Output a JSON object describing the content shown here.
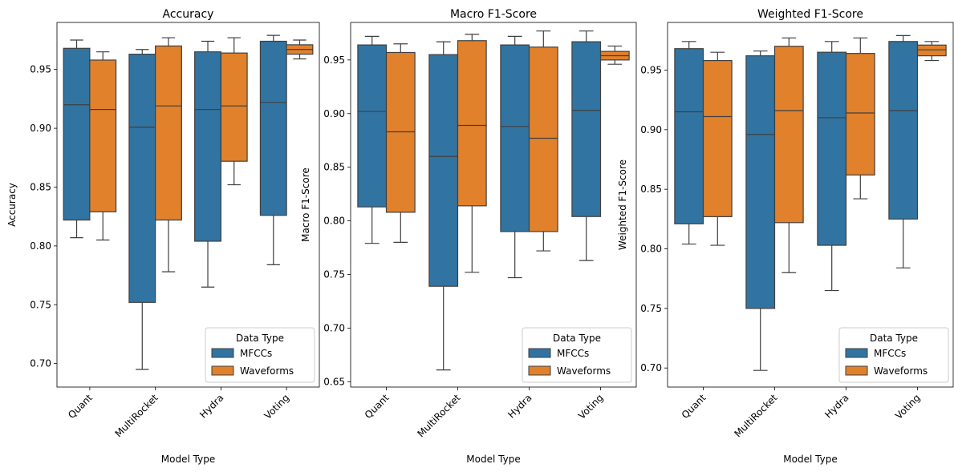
{
  "colors": {
    "MFCCs": "#3274a1",
    "Waveforms": "#e1812c",
    "line": "#3f3f3f"
  },
  "chart_data": [
    {
      "type": "box",
      "title": "Accuracy",
      "xlabel": "Model Type",
      "ylabel": "Accuracy",
      "ylim": [
        0.68,
        0.99
      ],
      "yticks": [
        0.7,
        0.75,
        0.8,
        0.85,
        0.9,
        0.95
      ],
      "ytick_labels": [
        "0.70",
        "0.75",
        "0.80",
        "0.85",
        "0.90",
        "0.95"
      ],
      "categories": [
        "Quant",
        "MultiRocket",
        "Hydra",
        "Voting"
      ],
      "legend": {
        "title": "Data Type",
        "position": "lower right",
        "entries": [
          "MFCCs",
          "Waveforms"
        ]
      },
      "series": [
        {
          "name": "MFCCs",
          "boxes": [
            {
              "min": 0.807,
              "q1": 0.822,
              "median": 0.92,
              "q3": 0.968,
              "max": 0.975
            },
            {
              "min": 0.695,
              "q1": 0.752,
              "median": 0.901,
              "q3": 0.963,
              "max": 0.967
            },
            {
              "min": 0.765,
              "q1": 0.804,
              "median": 0.916,
              "q3": 0.965,
              "max": 0.974
            },
            {
              "min": 0.784,
              "q1": 0.826,
              "median": 0.922,
              "q3": 0.974,
              "max": 0.979
            }
          ]
        },
        {
          "name": "Waveforms",
          "boxes": [
            {
              "min": 0.805,
              "q1": 0.829,
              "median": 0.916,
              "q3": 0.958,
              "max": 0.965
            },
            {
              "min": 0.778,
              "q1": 0.822,
              "median": 0.919,
              "q3": 0.97,
              "max": 0.977
            },
            {
              "min": 0.852,
              "q1": 0.872,
              "median": 0.919,
              "q3": 0.964,
              "max": 0.977
            },
            {
              "min": 0.959,
              "q1": 0.963,
              "median": 0.967,
              "q3": 0.971,
              "max": 0.975
            }
          ]
        }
      ]
    },
    {
      "type": "box",
      "title": "Macro F1-Score",
      "xlabel": "Model Type",
      "ylabel": "Macro F1-Score",
      "ylim": [
        0.645,
        0.985
      ],
      "yticks": [
        0.65,
        0.7,
        0.75,
        0.8,
        0.85,
        0.9,
        0.95
      ],
      "ytick_labels": [
        "0.65",
        "0.70",
        "0.75",
        "0.80",
        "0.85",
        "0.90",
        "0.95"
      ],
      "categories": [
        "Quant",
        "MultiRocket",
        "Hydra",
        "Voting"
      ],
      "legend": {
        "title": "Data Type",
        "position": "lower right",
        "entries": [
          "MFCCs",
          "Waveforms"
        ]
      },
      "series": [
        {
          "name": "MFCCs",
          "boxes": [
            {
              "min": 0.779,
              "q1": 0.813,
              "median": 0.902,
              "q3": 0.964,
              "max": 0.972
            },
            {
              "min": 0.661,
              "q1": 0.739,
              "median": 0.86,
              "q3": 0.955,
              "max": 0.967
            },
            {
              "min": 0.747,
              "q1": 0.79,
              "median": 0.888,
              "q3": 0.964,
              "max": 0.972
            },
            {
              "min": 0.763,
              "q1": 0.804,
              "median": 0.903,
              "q3": 0.967,
              "max": 0.977
            }
          ]
        },
        {
          "name": "Waveforms",
          "boxes": [
            {
              "min": 0.78,
              "q1": 0.808,
              "median": 0.883,
              "q3": 0.957,
              "max": 0.965
            },
            {
              "min": 0.752,
              "q1": 0.814,
              "median": 0.889,
              "q3": 0.968,
              "max": 0.974
            },
            {
              "min": 0.772,
              "q1": 0.79,
              "median": 0.877,
              "q3": 0.962,
              "max": 0.977
            },
            {
              "min": 0.946,
              "q1": 0.95,
              "median": 0.954,
              "q3": 0.958,
              "max": 0.963
            }
          ]
        }
      ]
    },
    {
      "type": "box",
      "title": "Weighted F1-Score",
      "xlabel": "Model Type",
      "ylabel": "Weighted F1-Score",
      "ylim": [
        0.684,
        0.99
      ],
      "yticks": [
        0.7,
        0.75,
        0.8,
        0.85,
        0.9,
        0.95
      ],
      "ytick_labels": [
        "0.70",
        "0.75",
        "0.80",
        "0.85",
        "0.90",
        "0.95"
      ],
      "categories": [
        "Quant",
        "MultiRocket",
        "Hydra",
        "Voting"
      ],
      "legend": {
        "title": "Data Type",
        "position": "lower right",
        "entries": [
          "MFCCs",
          "Waveforms"
        ]
      },
      "series": [
        {
          "name": "MFCCs",
          "boxes": [
            {
              "min": 0.804,
              "q1": 0.821,
              "median": 0.915,
              "q3": 0.968,
              "max": 0.974
            },
            {
              "min": 0.698,
              "q1": 0.75,
              "median": 0.896,
              "q3": 0.962,
              "max": 0.966
            },
            {
              "min": 0.765,
              "q1": 0.803,
              "median": 0.91,
              "q3": 0.965,
              "max": 0.974
            },
            {
              "min": 0.784,
              "q1": 0.825,
              "median": 0.916,
              "q3": 0.974,
              "max": 0.979
            }
          ]
        },
        {
          "name": "Waveforms",
          "boxes": [
            {
              "min": 0.803,
              "q1": 0.827,
              "median": 0.911,
              "q3": 0.958,
              "max": 0.965
            },
            {
              "min": 0.78,
              "q1": 0.822,
              "median": 0.916,
              "q3": 0.97,
              "max": 0.977
            },
            {
              "min": 0.842,
              "q1": 0.862,
              "median": 0.914,
              "q3": 0.964,
              "max": 0.977
            },
            {
              "min": 0.958,
              "q1": 0.962,
              "median": 0.967,
              "q3": 0.971,
              "max": 0.974
            }
          ]
        }
      ]
    }
  ]
}
